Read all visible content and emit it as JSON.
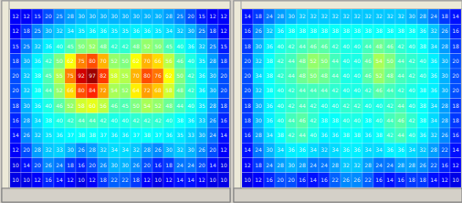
{
  "chart_data": [
    {
      "type": "heatmap",
      "grid": true,
      "data_labels": true,
      "tick_labels": false,
      "colorbar_range": [
        0,
        100
      ],
      "cells": [
        [
          12,
          12,
          15,
          20,
          25,
          28,
          30,
          30,
          30,
          30,
          30,
          30,
          30,
          30,
          28,
          25,
          20,
          15,
          12,
          12
        ],
        [
          12,
          18,
          25,
          30,
          32,
          34,
          35,
          36,
          36,
          35,
          35,
          36,
          36,
          35,
          34,
          32,
          30,
          25,
          18,
          12
        ],
        [
          15,
          25,
          32,
          36,
          40,
          45,
          50,
          52,
          48,
          42,
          42,
          48,
          52,
          50,
          45,
          40,
          36,
          32,
          25,
          15
        ],
        [
          18,
          30,
          36,
          42,
          50,
          62,
          75,
          80,
          70,
          52,
          50,
          62,
          70,
          66,
          56,
          46,
          40,
          35,
          28,
          18
        ],
        [
          20,
          32,
          38,
          45,
          55,
          75,
          92,
          97,
          82,
          58,
          55,
          70,
          80,
          76,
          62,
          50,
          42,
          36,
          30,
          20
        ],
        [
          20,
          32,
          38,
          44,
          52,
          66,
          80,
          84,
          72,
          54,
          52,
          64,
          72,
          68,
          58,
          48,
          42,
          36,
          30,
          20
        ],
        [
          18,
          30,
          36,
          40,
          46,
          52,
          58,
          60,
          56,
          46,
          45,
          50,
          54,
          52,
          48,
          44,
          40,
          35,
          28,
          18
        ],
        [
          16,
          28,
          34,
          38,
          40,
          42,
          44,
          44,
          42,
          40,
          40,
          42,
          42,
          42,
          40,
          38,
          36,
          33,
          26,
          16
        ],
        [
          14,
          26,
          32,
          35,
          36,
          37,
          38,
          38,
          37,
          36,
          36,
          37,
          38,
          37,
          36,
          35,
          33,
          30,
          24,
          14
        ],
        [
          12,
          20,
          28,
          32,
          33,
          30,
          26,
          28,
          32,
          34,
          34,
          32,
          28,
          26,
          30,
          32,
          30,
          26,
          20,
          12
        ],
        [
          10,
          14,
          20,
          26,
          24,
          18,
          16,
          20,
          26,
          30,
          30,
          26,
          20,
          16,
          18,
          24,
          24,
          20,
          14,
          10
        ],
        [
          10,
          10,
          12,
          16,
          14,
          12,
          10,
          12,
          18,
          22,
          22,
          18,
          12,
          10,
          12,
          14,
          14,
          12,
          10,
          10
        ]
      ]
    },
    {
      "type": "heatmap",
      "grid": true,
      "data_labels": true,
      "tick_labels": false,
      "colorbar_range": [
        0,
        100
      ],
      "cells": [
        [
          14,
          18,
          24,
          28,
          30,
          32,
          32,
          32,
          32,
          32,
          32,
          32,
          32,
          32,
          32,
          30,
          28,
          24,
          18,
          14
        ],
        [
          16,
          26,
          32,
          36,
          38,
          38,
          38,
          38,
          38,
          38,
          38,
          38,
          38,
          38,
          38,
          38,
          36,
          32,
          26,
          16
        ],
        [
          18,
          30,
          36,
          40,
          42,
          44,
          46,
          46,
          42,
          40,
          40,
          44,
          48,
          46,
          42,
          40,
          38,
          34,
          28,
          18
        ],
        [
          20,
          32,
          38,
          42,
          44,
          48,
          52,
          50,
          44,
          40,
          40,
          46,
          54,
          50,
          44,
          42,
          40,
          36,
          30,
          20
        ],
        [
          20,
          34,
          38,
          42,
          44,
          48,
          50,
          48,
          44,
          40,
          40,
          46,
          52,
          48,
          44,
          42,
          40,
          36,
          30,
          20
        ],
        [
          20,
          32,
          38,
          40,
          42,
          44,
          44,
          44,
          42,
          40,
          40,
          42,
          46,
          44,
          42,
          40,
          38,
          36,
          30,
          20
        ],
        [
          18,
          30,
          36,
          40,
          42,
          44,
          42,
          40,
          40,
          42,
          42,
          40,
          40,
          42,
          44,
          40,
          38,
          34,
          28,
          18
        ],
        [
          18,
          30,
          36,
          40,
          44,
          46,
          42,
          38,
          38,
          40,
          40,
          38,
          40,
          44,
          46,
          42,
          38,
          34,
          28,
          18
        ],
        [
          16,
          28,
          34,
          38,
          42,
          44,
          40,
          36,
          36,
          38,
          38,
          36,
          38,
          42,
          44,
          40,
          36,
          32,
          26,
          16
        ],
        [
          14,
          24,
          30,
          34,
          36,
          36,
          34,
          32,
          34,
          36,
          36,
          34,
          34,
          36,
          36,
          34,
          32,
          28,
          22,
          14
        ],
        [
          12,
          18,
          24,
          28,
          30,
          28,
          24,
          24,
          28,
          32,
          32,
          28,
          24,
          24,
          28,
          28,
          26,
          22,
          16,
          12
        ],
        [
          10,
          12,
          16,
          20,
          20,
          16,
          14,
          16,
          22,
          26,
          26,
          22,
          16,
          14,
          16,
          18,
          18,
          14,
          12,
          10
        ]
      ]
    }
  ]
}
